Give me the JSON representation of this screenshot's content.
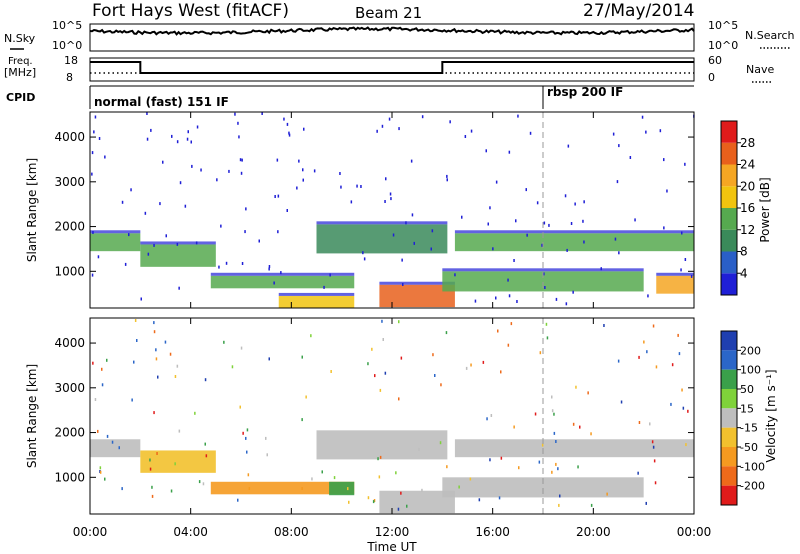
{
  "header": {
    "station": "Fort Hays West (fitACF)",
    "beam": "Beam 21",
    "date": "27/May/2014"
  },
  "colors": {
    "power_scale": [
      "#1f1fd6",
      "#2a5fc7",
      "#3a8a5a",
      "#56a94f",
      "#f1c40f",
      "#f5a623",
      "#e8601c",
      "#e01b1b"
    ],
    "velocity_scale": [
      "#1f3fb0",
      "#2b66c8",
      "#3aa04a",
      "#7fd23a",
      "#bebebe",
      "#f2c12e",
      "#f59a20",
      "#ee6a1a",
      "#e01b1b"
    ],
    "axis": "#000000"
  },
  "nsky_panel": {
    "left_label": "N.Sky",
    "right_label": "N.Search",
    "left_ticks": [
      "10^5",
      "10^0"
    ],
    "right_ticks": [
      "10^5",
      "10^0"
    ]
  },
  "freq_panel": {
    "left_label_line1": "Freq.",
    "left_label_line2": "[MHz]",
    "right_label": "Nave",
    "left_ticks": [
      "18",
      "8"
    ],
    "right_ticks": [
      "60",
      "0"
    ]
  },
  "cpid_panel": {
    "label": "CPID",
    "modes": [
      {
        "name": "normal (fast) 151 IF",
        "start_h": 0,
        "end_h": 18
      },
      {
        "name": "rbsp 200 IF",
        "start_h": 18,
        "end_h": 24
      }
    ]
  },
  "chart_data": [
    {
      "type": "heatmap",
      "name": "power",
      "ylabel": "Slant Range [km]",
      "y_ticks": [
        "1000",
        "2000",
        "3000",
        "4000"
      ],
      "ylim": [
        180,
        4560
      ],
      "colorbar_label": "Power [dB]",
      "colorbar_ticks": [
        "4",
        "8",
        "12",
        "16",
        "20",
        "24",
        "28"
      ],
      "colorbar_range": [
        0,
        32
      ],
      "bands": [
        {
          "x_start_h": 0.0,
          "x_end_h": 2.0,
          "range_km": [
            1450,
            1850
          ],
          "level_db": 14
        },
        {
          "x_start_h": 2.0,
          "x_end_h": 5.0,
          "range_km": [
            1100,
            1600
          ],
          "level_db": 12
        },
        {
          "x_start_h": 4.8,
          "x_end_h": 10.5,
          "range_km": [
            620,
            900
          ],
          "level_db": 14
        },
        {
          "x_start_h": 7.5,
          "x_end_h": 10.5,
          "range_km": [
            180,
            450
          ],
          "level_db": 18
        },
        {
          "x_start_h": 9.0,
          "x_end_h": 14.2,
          "range_km": [
            1400,
            2050
          ],
          "level_db": 10
        },
        {
          "x_start_h": 11.5,
          "x_end_h": 14.5,
          "range_km": [
            200,
            700
          ],
          "level_db": 26
        },
        {
          "x_start_h": 14.5,
          "x_end_h": 24.0,
          "range_km": [
            1450,
            1850
          ],
          "level_db": 12
        },
        {
          "x_start_h": 14.0,
          "x_end_h": 22.0,
          "range_km": [
            550,
            1000
          ],
          "level_db": 14
        },
        {
          "x_start_h": 22.5,
          "x_end_h": 24.0,
          "range_km": [
            500,
            900
          ],
          "level_db": 22
        }
      ]
    },
    {
      "type": "heatmap",
      "name": "velocity",
      "ylabel": "Slant Range [km]",
      "y_ticks": [
        "1000",
        "2000",
        "3000",
        "4000"
      ],
      "ylim": [
        180,
        4560
      ],
      "colorbar_label": "Velocity [m s⁻¹]",
      "colorbar_ticks": [
        "200",
        "100",
        "50",
        "15",
        "-15",
        "-50",
        "-100",
        "-200"
      ],
      "colorbar_range": [
        -250,
        250
      ],
      "bands": [
        {
          "x_start_h": 0.0,
          "x_end_h": 2.0,
          "range_km": [
            1450,
            1850
          ],
          "velocity": 0
        },
        {
          "x_start_h": 2.0,
          "x_end_h": 5.0,
          "range_km": [
            1100,
            1600
          ],
          "velocity": -30
        },
        {
          "x_start_h": 4.8,
          "x_end_h": 10.5,
          "range_km": [
            620,
            900
          ],
          "velocity": -60
        },
        {
          "x_start_h": 9.5,
          "x_end_h": 10.5,
          "range_km": [
            600,
            900
          ],
          "velocity": 60
        },
        {
          "x_start_h": 9.0,
          "x_end_h": 14.2,
          "range_km": [
            1400,
            2050
          ],
          "velocity": 0
        },
        {
          "x_start_h": 11.5,
          "x_end_h": 14.5,
          "range_km": [
            200,
            700
          ],
          "velocity": 0
        },
        {
          "x_start_h": 14.5,
          "x_end_h": 24.0,
          "range_km": [
            1450,
            1850
          ],
          "velocity": 0
        },
        {
          "x_start_h": 14.0,
          "x_end_h": 22.0,
          "range_km": [
            550,
            1000
          ],
          "velocity": 0
        }
      ]
    }
  ],
  "x_axis": {
    "label": "Time UT",
    "ticks": [
      "00:00",
      "04:00",
      "08:00",
      "12:00",
      "16:00",
      "20:00",
      "00:00"
    ],
    "range_h": [
      0,
      24
    ]
  }
}
